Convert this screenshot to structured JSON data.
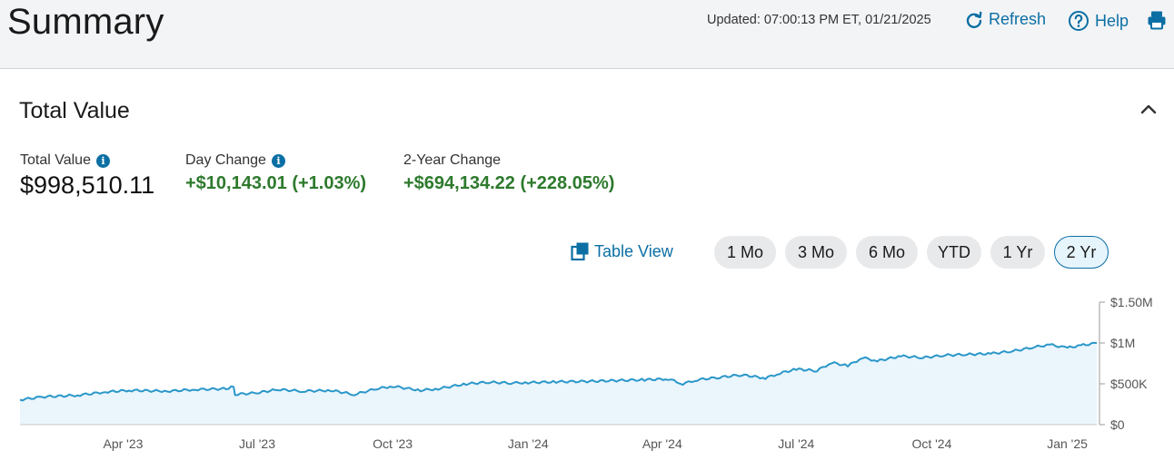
{
  "header": {
    "title": "Summary",
    "updated": "Updated: 07:00:13 PM ET, 01/21/2025",
    "refresh_label": "Refresh",
    "help_label": "Help",
    "refresh_icon": "refresh-icon",
    "help_icon": "help-icon",
    "print_icon": "printer-icon"
  },
  "section": {
    "title": "Total Value",
    "collapse_icon": "chevron-up-icon"
  },
  "metrics": [
    {
      "label": "Total Value",
      "value": "$998,510.11",
      "has_info": true
    },
    {
      "label": "Day Change",
      "value": "+$10,143.01 (+1.03%)",
      "has_info": true
    },
    {
      "label": "2-Year Change",
      "value": "+$694,134.22 (+228.05%)",
      "has_info": false
    }
  ],
  "controls": {
    "table_view_label": "Table View",
    "ranges": [
      "1 Mo",
      "3 Mo",
      "6 Mo",
      "YTD",
      "1 Yr",
      "2 Yr"
    ],
    "active_range": "2 Yr"
  },
  "colors": {
    "accent": "#0b6fa4",
    "positive": "#2d7a2d",
    "line": "#2a97c9",
    "fill": "#eaf5fc"
  },
  "chart_data": {
    "type": "area",
    "x_tick_labels": [
      "Apr '23",
      "Jul '23",
      "Oct '23",
      "Jan '24",
      "Apr '24",
      "Jul '24",
      "Oct '24",
      "Jan '25"
    ],
    "y_tick_labels": [
      "$1.50M",
      "$1M",
      "$500K",
      "$0"
    ],
    "ylim": [
      0,
      1500000
    ],
    "axis_position": "right",
    "grid": false,
    "x": [
      "2023-01-21",
      "2023-02-05",
      "2023-03-01",
      "2023-03-20",
      "2023-04-05",
      "2023-05-01",
      "2023-05-20",
      "2023-06-10",
      "2023-06-15",
      "2023-06-16",
      "2023-07-01",
      "2023-07-15",
      "2023-08-01",
      "2023-08-20",
      "2023-09-05",
      "2023-09-20",
      "2023-10-01",
      "2023-10-20",
      "2023-11-01",
      "2023-11-20",
      "2023-12-05",
      "2023-12-20",
      "2024-01-01",
      "2024-01-20",
      "2024-02-10",
      "2024-03-01",
      "2024-03-20",
      "2024-04-05",
      "2024-04-15",
      "2024-04-25",
      "2024-05-10",
      "2024-05-25",
      "2024-06-10",
      "2024-06-20",
      "2024-07-01",
      "2024-07-15",
      "2024-07-25",
      "2024-08-05",
      "2024-08-15",
      "2024-08-25",
      "2024-09-10",
      "2024-09-25",
      "2024-10-10",
      "2024-10-25",
      "2024-11-10",
      "2024-11-25",
      "2024-12-10",
      "2024-12-20",
      "2025-01-01",
      "2025-01-10",
      "2025-01-21"
    ],
    "values": [
      304000,
      340000,
      360000,
      400000,
      420000,
      410000,
      430000,
      440000,
      470000,
      370000,
      390000,
      430000,
      410000,
      420000,
      370000,
      440000,
      470000,
      420000,
      440000,
      500000,
      520000,
      510000,
      515000,
      525000,
      530000,
      540000,
      550000,
      560000,
      500000,
      550000,
      580000,
      610000,
      570000,
      630000,
      680000,
      660000,
      760000,
      720000,
      820000,
      780000,
      840000,
      820000,
      850000,
      860000,
      870000,
      900000,
      950000,
      980000,
      940000,
      970000,
      998510
    ]
  }
}
